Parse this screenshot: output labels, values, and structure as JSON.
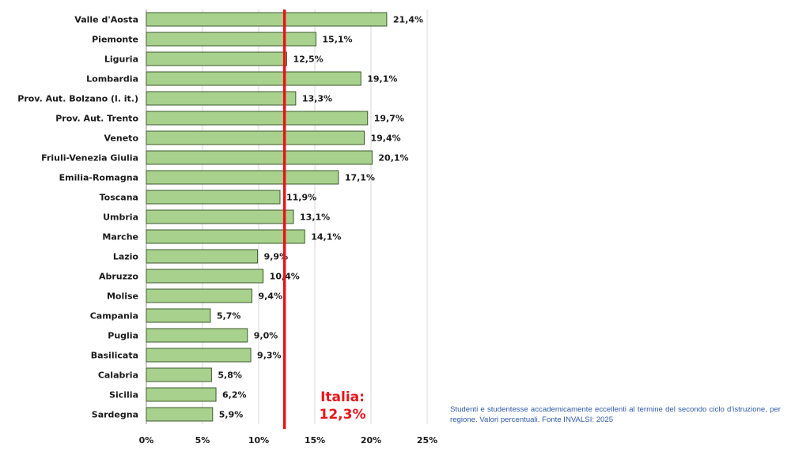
{
  "chart_data": {
    "type": "bar",
    "orientation": "horizontal",
    "categories": [
      "Valle d'Aosta",
      "Piemonte",
      "Liguria",
      "Lombardia",
      "Prov. Aut. Bolzano (l. it.)",
      "Prov. Aut. Trento",
      "Veneto",
      "Friuli-Venezia Giulia",
      "Emilia-Romagna",
      "Toscana",
      "Umbria",
      "Marche",
      "Lazio",
      "Abruzzo",
      "Molise",
      "Campania",
      "Puglia",
      "Basilicata",
      "Calabria",
      "Sicilia",
      "Sardegna"
    ],
    "values": [
      21.4,
      15.1,
      12.5,
      19.1,
      13.3,
      19.7,
      19.4,
      20.1,
      17.1,
      11.9,
      13.1,
      14.1,
      9.9,
      10.4,
      9.4,
      5.7,
      9.0,
      9.3,
      5.8,
      6.2,
      5.9
    ],
    "value_labels": [
      "21,4%",
      "15,1%",
      "12,5%",
      "19,1%",
      "13,3%",
      "19,7%",
      "19,4%",
      "20,1%",
      "17,1%",
      "11,9%",
      "13,1%",
      "14,1%",
      "9,9%",
      "10,4%",
      "9,4%",
      "5,7%",
      "9,0%",
      "9,3%",
      "5,8%",
      "6,2%",
      "5,9%"
    ],
    "xlim": [
      0,
      25
    ],
    "xticks": [
      0,
      5,
      10,
      15,
      20,
      25
    ],
    "xtick_labels": [
      "0%",
      "5%",
      "10%",
      "15%",
      "20%",
      "25%"
    ],
    "grid": "vertical",
    "reference_line": {
      "value": 12.3,
      "label_line1": "Italia:",
      "label_line2": "12,3%",
      "color": "#e8141b"
    },
    "colors": {
      "bar_fill": "#a9d18e",
      "bar_stroke": "#3c5a2b",
      "grid": "#d9d9d9"
    }
  },
  "caption": {
    "text": "Studenti e studentesse accademicamente eccellenti al termine del secondo ciclo d'istruzione, per regione. Valori percentuali. Fonte INVALSI: 2025",
    "color": "#2e5aa6"
  }
}
